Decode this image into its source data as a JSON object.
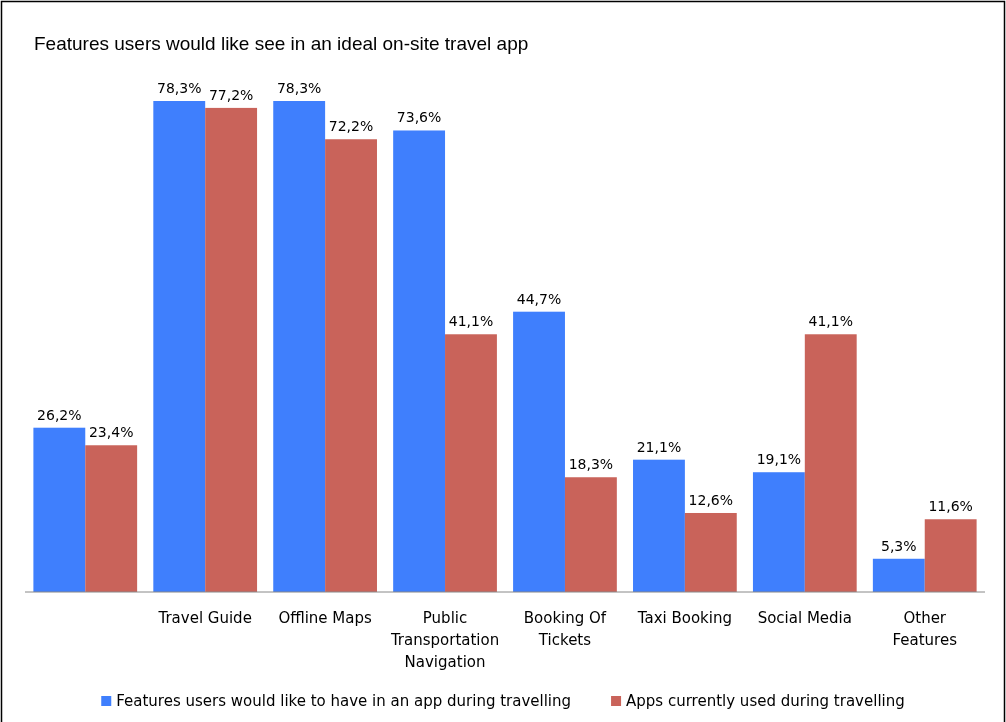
{
  "chart_data": {
    "type": "bar",
    "title": "Features users would like see in an ideal on-site travel app",
    "categories": [
      null,
      "Travel Guide",
      "Offline Maps",
      "Public Transportation Navigation",
      "Booking Of Tickets",
      "Taxi Booking",
      "Social Media",
      "Other Features"
    ],
    "series": [
      {
        "name": "Features users would like to have in an app during travelling",
        "color": "#3f7ffd",
        "values": [
          26.2,
          78.3,
          78.3,
          73.6,
          44.7,
          21.1,
          19.1,
          5.3
        ],
        "value_labels": [
          "26,2%",
          "78,3%",
          "78,3%",
          "73,6%",
          "44,7%",
          "21,1%",
          "19,1%",
          "5,3%"
        ]
      },
      {
        "name": "Apps currently used during travelling",
        "color": "#c9635a",
        "values": [
          23.4,
          77.2,
          72.2,
          41.1,
          18.3,
          12.6,
          41.1,
          11.6
        ],
        "value_labels": [
          "23,4%",
          "77,2%",
          "72,2%",
          "41,1%",
          "18,3%",
          "12,6%",
          "41,1%",
          "11,6%"
        ]
      }
    ],
    "legend": "bottom"
  }
}
